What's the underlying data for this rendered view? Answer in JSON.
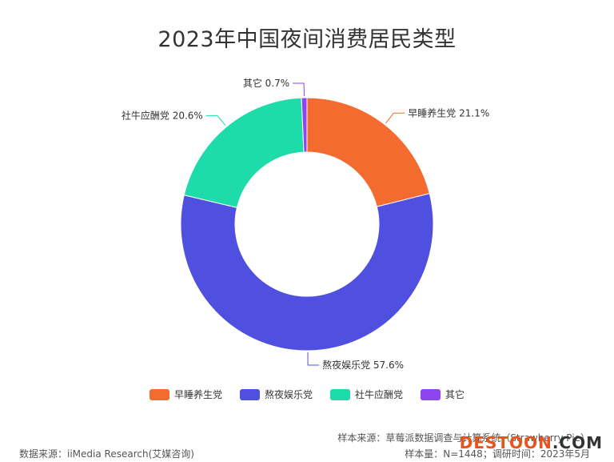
{
  "chart_data": {
    "type": "pie",
    "title": "2023年中国夜间消费居民类型",
    "categories": [
      "早睡养生党",
      "熬夜娱乐党",
      "社牛应酬党",
      "其它"
    ],
    "values": [
      21.1,
      57.6,
      20.6,
      0.7
    ],
    "data_labels": [
      "早睡养生党 21.1%",
      "熬夜娱乐党 57.6%",
      "社牛应酬党 20.6%",
      "其它 0.7%"
    ],
    "colors": [
      "#f46b2f",
      "#5050e0",
      "#1edcaa",
      "#8e44ef"
    ],
    "donut": true,
    "legend_position": "bottom"
  },
  "legend": {
    "items": [
      {
        "label": "早睡养生党",
        "color": "#f46b2f"
      },
      {
        "label": "熬夜娱乐党",
        "color": "#5050e0"
      },
      {
        "label": "社牛应酬党",
        "color": "#1edcaa"
      },
      {
        "label": "其它",
        "color": "#8e44ef"
      }
    ]
  },
  "footer": {
    "source": "数据来源：iiMedia Research(艾媒咨询)",
    "sample_source": "样本来源：草莓派数据调查与计算系统（Strawberry Pie）",
    "sample_size": "样本量：N=1448；调研时间：2023年5月"
  },
  "watermark": {
    "part1": "DESTOON",
    "part2": ".COM"
  }
}
